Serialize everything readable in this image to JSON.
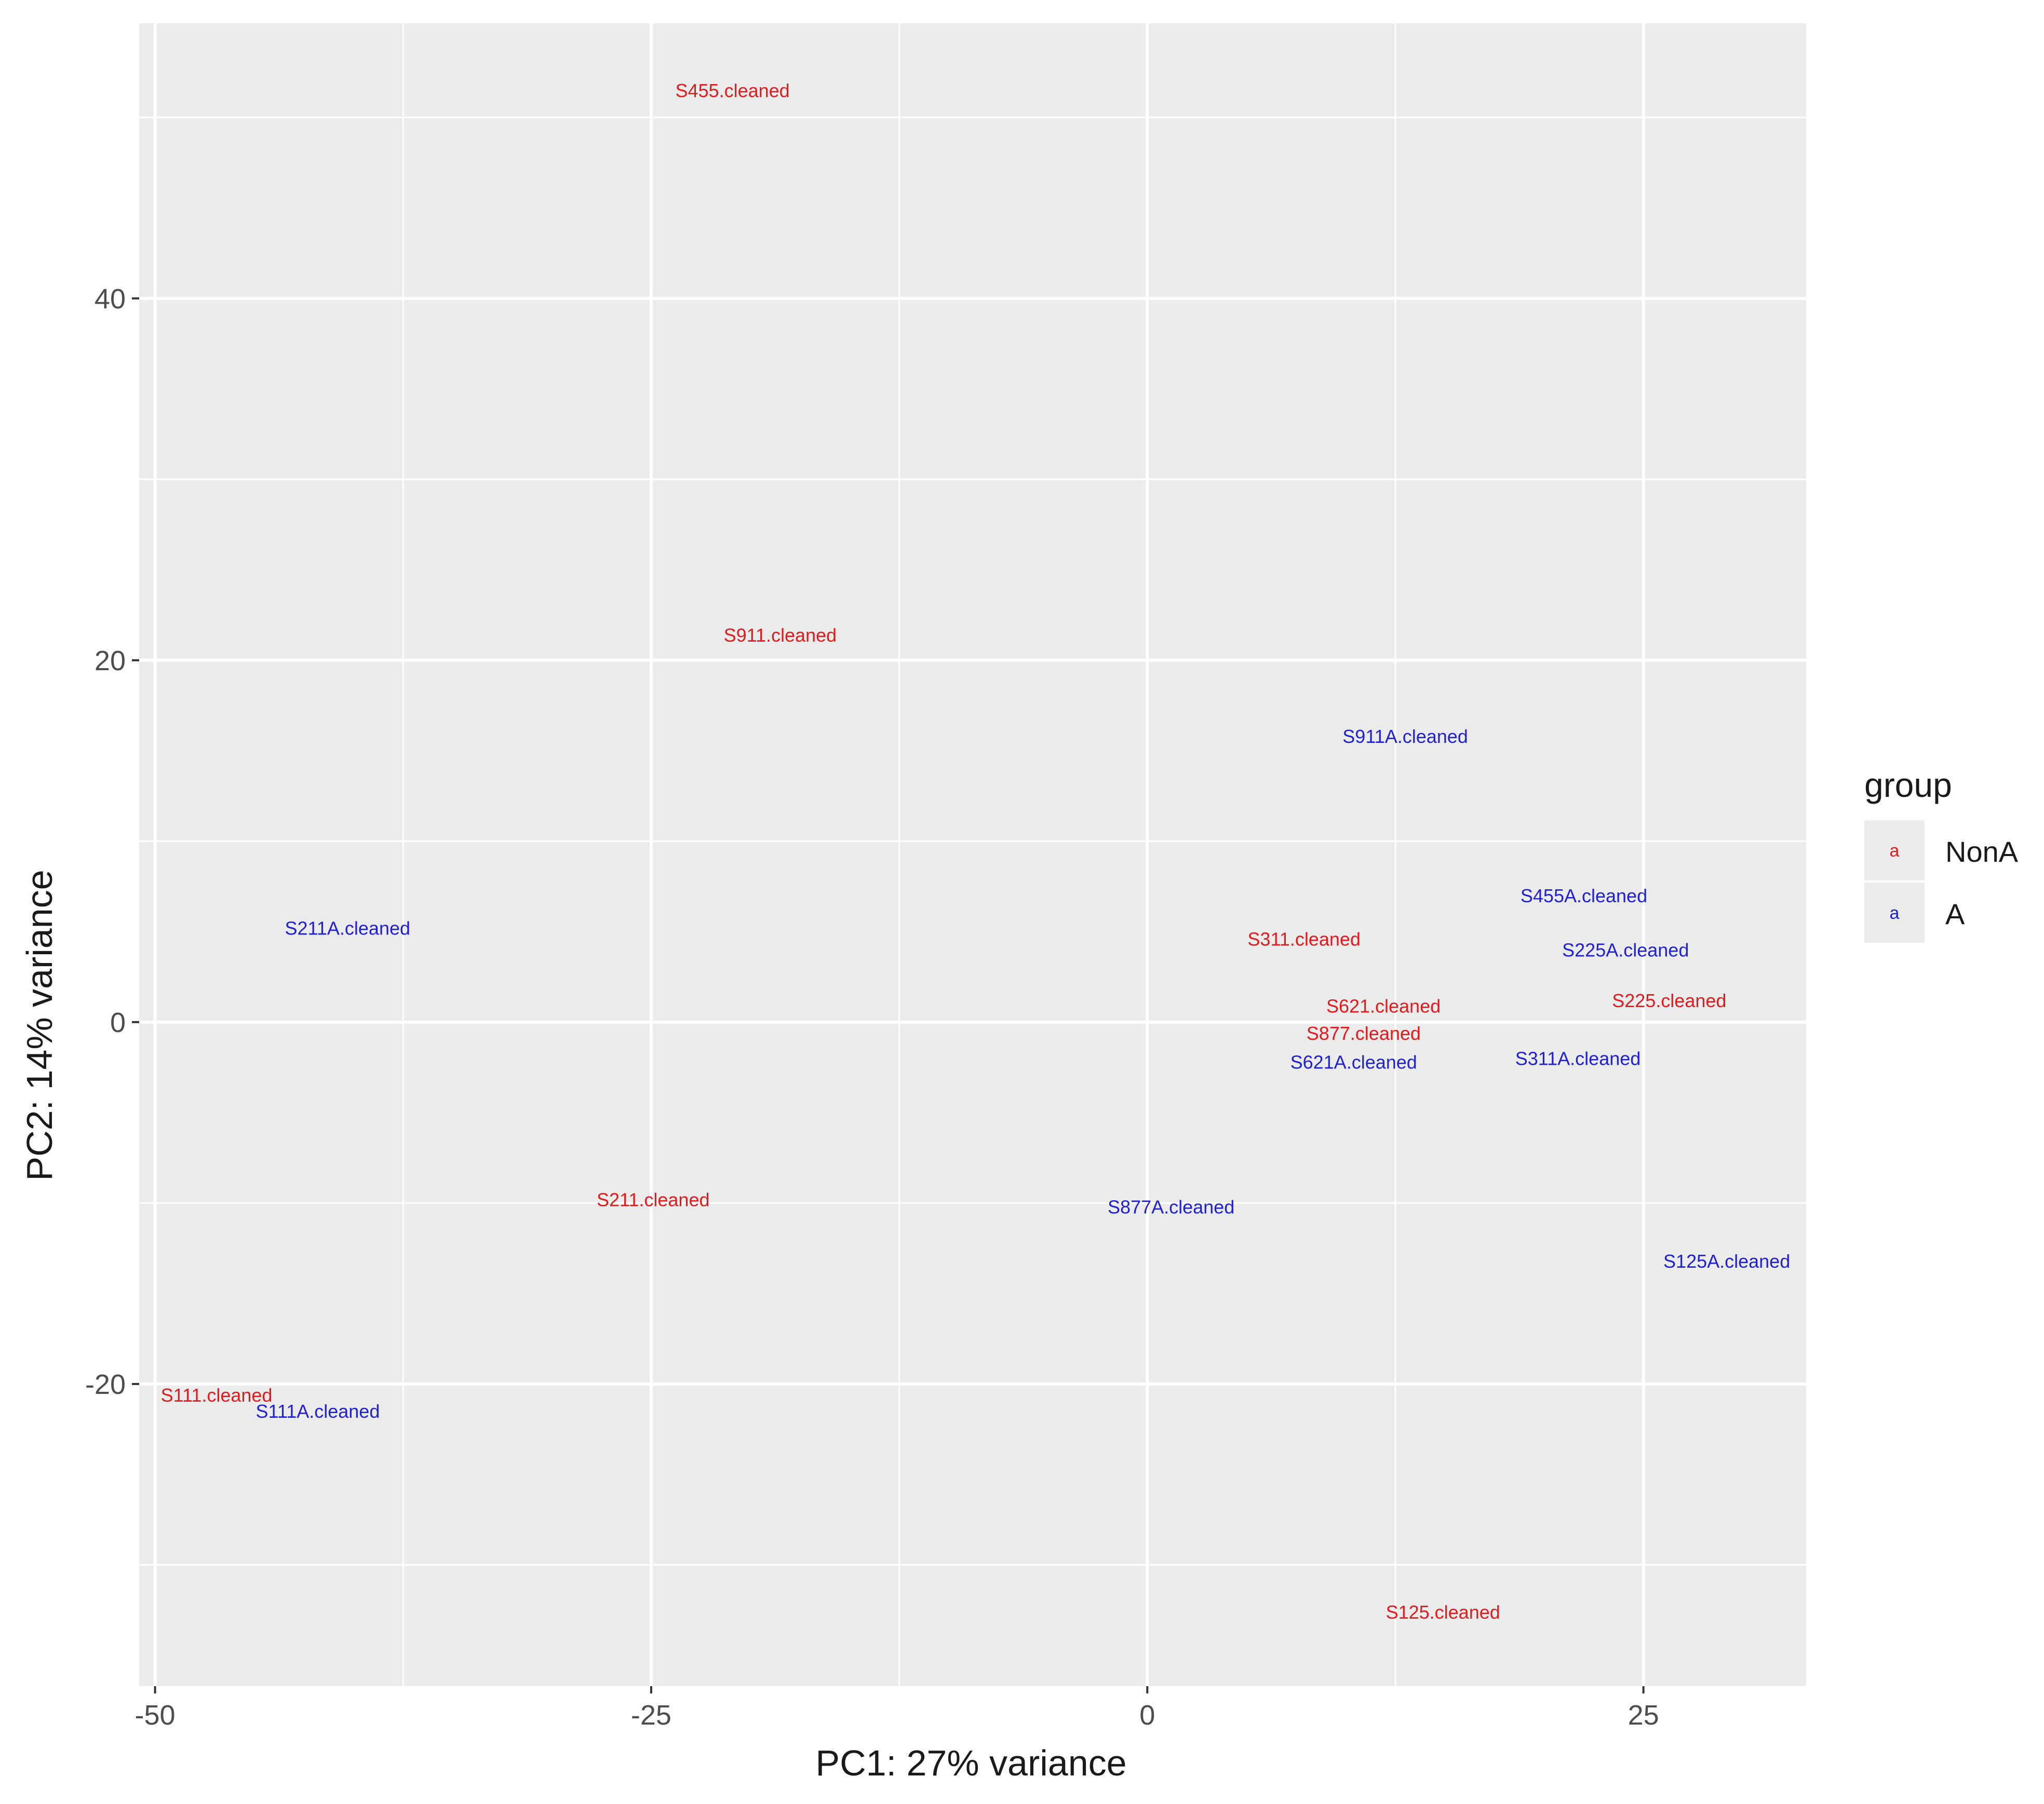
{
  "chart_data": {
    "type": "scatter",
    "title": "",
    "xlabel": "PC1: 27% variance",
    "ylabel": "PC2: 14% variance",
    "xlim": [
      -50.8,
      33.2
    ],
    "ylim": [
      -36.7,
      55.2
    ],
    "x_ticks": [
      -50,
      -25,
      0,
      25
    ],
    "x_tick_labels": [
      "-50",
      "-25",
      "0",
      "25"
    ],
    "y_ticks": [
      -20,
      0,
      20,
      40
    ],
    "y_tick_labels": [
      "-20",
      "0",
      "20",
      "40"
    ],
    "grid": true,
    "legend": {
      "title": "group",
      "placement": "right",
      "glyph": "a",
      "entries": [
        {
          "label": "NonA",
          "color": "#e31a1c"
        },
        {
          "label": "A",
          "color": "#1f1fd6"
        }
      ]
    },
    "colors": {
      "panel": "#ebebeb",
      "grid": "#ffffff",
      "NonA": "#e31a1c",
      "A": "#1f1fd6"
    },
    "points": [
      {
        "label": "S455.cleaned",
        "x": -20.9,
        "y": 51.5,
        "group": "NonA"
      },
      {
        "label": "S911.cleaned",
        "x": -18.5,
        "y": 21.4,
        "group": "NonA"
      },
      {
        "label": "S911A.cleaned",
        "x": 13.0,
        "y": 15.8,
        "group": "A"
      },
      {
        "label": "S211A.cleaned",
        "x": -40.3,
        "y": 5.2,
        "group": "A"
      },
      {
        "label": "S455A.cleaned",
        "x": 22.0,
        "y": 7.0,
        "group": "A"
      },
      {
        "label": "S311.cleaned",
        "x": 7.9,
        "y": 4.6,
        "group": "NonA"
      },
      {
        "label": "S225A.cleaned",
        "x": 24.1,
        "y": 4.0,
        "group": "A"
      },
      {
        "label": "S621.cleaned",
        "x": 11.9,
        "y": 0.9,
        "group": "NonA"
      },
      {
        "label": "S225.cleaned",
        "x": 26.3,
        "y": 1.2,
        "group": "NonA"
      },
      {
        "label": "S877.cleaned",
        "x": 10.9,
        "y": -0.6,
        "group": "NonA"
      },
      {
        "label": "S621A.cleaned",
        "x": 10.4,
        "y": -2.2,
        "group": "A"
      },
      {
        "label": "S311A.cleaned",
        "x": 21.7,
        "y": -2.0,
        "group": "A"
      },
      {
        "label": "S211.cleaned",
        "x": -24.9,
        "y": -9.8,
        "group": "NonA"
      },
      {
        "label": "S877A.cleaned",
        "x": 1.2,
        "y": -10.2,
        "group": "A"
      },
      {
        "label": "S125A.cleaned",
        "x": 29.2,
        "y": -13.2,
        "group": "A"
      },
      {
        "label": "S111.cleaned",
        "x": -46.9,
        "y": -20.6,
        "group": "NonA"
      },
      {
        "label": "S111A.cleaned",
        "x": -41.8,
        "y": -21.5,
        "group": "A"
      },
      {
        "label": "S125.cleaned",
        "x": 14.9,
        "y": -32.6,
        "group": "NonA"
      }
    ]
  }
}
